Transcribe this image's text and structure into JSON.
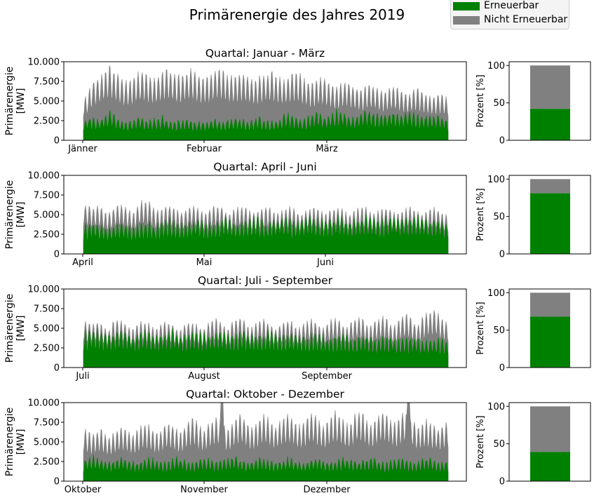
{
  "chart_data": {
    "type": "area",
    "title": "Primärenergie des Jahres 2019",
    "legend": {
      "placement": "top-right",
      "entries": [
        {
          "label": "Erneuerbar",
          "color": "#008000"
        },
        {
          "label": "Nicht Erneuerbar",
          "color": "#808080"
        }
      ]
    },
    "colors": {
      "renewable": "#008000",
      "nonrenewable": "#808080"
    },
    "ylabel": "Primärenergie\n[MW]",
    "yticks": [
      "0",
      "2.500",
      "5.000",
      "7.500",
      "10.000"
    ],
    "ylim": [
      0,
      10000
    ],
    "bar_ylabel": "Prozent [%]",
    "bar_yticks": [
      "0",
      "50",
      "100"
    ],
    "bar_ylim": [
      0,
      105
    ],
    "quarters": [
      {
        "title": "Quartal: Januar - März",
        "months": [
          "Jänner",
          "Februar",
          "März"
        ],
        "renewable_daily_peak_mw": [
          2800,
          3300,
          3100,
          2900,
          3200,
          3400,
          4100,
          3500,
          3000,
          2800,
          2600,
          2700,
          3000,
          3200,
          3100,
          2900,
          2800,
          3000,
          3100,
          3300,
          3000,
          2700,
          2600,
          2800,
          2900,
          3100,
          2800,
          2700,
          2600,
          2800,
          2700,
          2900,
          2800,
          2700,
          2600,
          2900,
          3100,
          3300,
          3000,
          2800,
          2700,
          2800,
          3000,
          3200,
          2900,
          2700,
          2600,
          2800,
          3000,
          3400,
          3700,
          3500,
          3300,
          3100,
          3000,
          3300,
          3600,
          3900,
          3700,
          3400,
          3500,
          3800,
          4100,
          4000,
          3700,
          3400,
          3300,
          3600,
          3800,
          4200,
          4100,
          3800,
          3500,
          3600,
          3800,
          4000,
          3900,
          3700,
          3600,
          3800,
          3900,
          3700,
          3500,
          3300,
          3400,
          3500,
          3600,
          3400,
          3200,
          3000
        ],
        "total_daily_peak_mw": [
          5600,
          6800,
          7900,
          8200,
          8600,
          9300,
          9900,
          9200,
          8800,
          8100,
          7800,
          8000,
          8500,
          8900,
          9100,
          8800,
          8400,
          8200,
          8600,
          9000,
          9600,
          9200,
          8700,
          8500,
          8800,
          9100,
          9500,
          9100,
          8600,
          8300,
          8500,
          8800,
          9300,
          9600,
          9100,
          8600,
          8400,
          8500,
          8700,
          8900,
          8500,
          8200,
          8000,
          8400,
          8600,
          8900,
          9100,
          8700,
          8300,
          8000,
          8400,
          8800,
          9000,
          8600,
          8100,
          7700,
          7500,
          7900,
          8300,
          8100,
          7600,
          7200,
          7000,
          7400,
          7700,
          7600,
          7200,
          6800,
          6700,
          7100,
          7400,
          7300,
          7000,
          6600,
          6500,
          6900,
          7100,
          7000,
          6600,
          6300,
          6200,
          6600,
          6800,
          6500,
          6100,
          5800,
          5900,
          6200,
          6000,
          5700
        ],
        "renewable_percent": 42
      },
      {
        "title": "Quartal: April - Juni",
        "months": [
          "April",
          "Mai",
          "Juni"
        ],
        "renewable_daily_peak_mw": [
          4000,
          4200,
          4500,
          4300,
          3900,
          3700,
          3800,
          4100,
          4400,
          4600,
          4300,
          3900,
          3800,
          4000,
          4300,
          4500,
          4400,
          4200,
          4100,
          4300,
          4600,
          4800,
          4600,
          4300,
          4100,
          4200,
          4500,
          4700,
          4900,
          4700,
          4400,
          4200,
          4300,
          4500,
          4800,
          5000,
          4800,
          4500,
          4300,
          4400,
          4600,
          4900,
          5100,
          4900,
          4600,
          4400,
          4500,
          4700,
          5000,
          5200,
          5000,
          4700,
          4500,
          4600,
          4800,
          5000,
          5300,
          5100,
          4800,
          4600,
          4700,
          4900,
          5100,
          5300,
          5100,
          4800,
          4600,
          4700,
          4900,
          5200,
          5400,
          5200,
          4900,
          4700,
          4800,
          5000,
          5200,
          5400,
          5200,
          5000,
          4800,
          4900,
          5100,
          5300,
          5100,
          4900,
          4700,
          4800,
          4900,
          4700,
          4500
        ],
        "total_daily_peak_mw": [
          6600,
          6400,
          6200,
          6300,
          6100,
          5600,
          5400,
          6100,
          6500,
          6400,
          6300,
          5700,
          5500,
          6300,
          6900,
          7000,
          6800,
          6100,
          5700,
          5900,
          6300,
          6400,
          6200,
          5700,
          5500,
          5900,
          6200,
          6300,
          6100,
          5600,
          5400,
          5900,
          6300,
          6400,
          6200,
          5600,
          5400,
          5800,
          6200,
          6300,
          6100,
          5600,
          5400,
          5700,
          6000,
          6200,
          6000,
          5500,
          5300,
          5700,
          6100,
          6200,
          6000,
          5500,
          5300,
          5700,
          6000,
          6200,
          6000,
          5500,
          5300,
          5700,
          6000,
          6200,
          6000,
          5500,
          5300,
          5700,
          6100,
          6300,
          6100,
          5600,
          5400,
          5700,
          6000,
          6200,
          6000,
          5500,
          5300,
          5700,
          6000,
          6200,
          6000,
          5500,
          5300,
          5600,
          5900,
          6100,
          5900,
          5400,
          5200
        ],
        "renewable_percent": 81
      },
      {
        "title": "Quartal: Juli - September",
        "months": [
          "Juli",
          "August",
          "September"
        ],
        "renewable_daily_peak_mw": [
          4800,
          5000,
          5200,
          5100,
          4900,
          4600,
          4500,
          4800,
          5000,
          5100,
          4900,
          4700,
          4500,
          4600,
          4800,
          5000,
          4900,
          4700,
          4500,
          4600,
          4800,
          5000,
          5100,
          4900,
          4700,
          4500,
          4600,
          4800,
          5000,
          4900,
          4700,
          4600,
          4700,
          4900,
          5000,
          4800,
          4600,
          4500,
          4600,
          4800,
          5000,
          4900,
          4700,
          4500,
          4600,
          4800,
          5000,
          4900,
          4700,
          4500,
          4400,
          4600,
          4800,
          4700,
          4500,
          4300,
          4300,
          4500,
          4700,
          4600,
          4400,
          4200,
          4200,
          4400,
          4600,
          4500,
          4300,
          4100,
          4100,
          4300,
          4500,
          4400,
          4200,
          4000,
          4000,
          4200,
          4400,
          4300,
          4100,
          3900,
          3900,
          4100,
          4300,
          4200,
          4000,
          3800,
          3800,
          4000,
          4200,
          4100,
          3900,
          3800
        ],
        "total_daily_peak_mw": [
          6100,
          6000,
          5900,
          6100,
          5800,
          5300,
          5100,
          6000,
          6200,
          6100,
          5900,
          5300,
          5100,
          5800,
          6100,
          6000,
          5800,
          5300,
          5100,
          5700,
          6000,
          5900,
          5700,
          5200,
          5000,
          5700,
          6000,
          5900,
          5700,
          5200,
          5000,
          5800,
          6300,
          6400,
          6100,
          5400,
          5200,
          5900,
          6400,
          6600,
          6200,
          5500,
          5300,
          5800,
          6200,
          6300,
          6000,
          5400,
          5200,
          5700,
          6100,
          6200,
          6000,
          5400,
          5200,
          5700,
          6100,
          6300,
          6100,
          5500,
          5300,
          5900,
          6300,
          6500,
          6300,
          5600,
          5400,
          6000,
          6400,
          6600,
          6400,
          5700,
          5500,
          6100,
          6500,
          6700,
          6500,
          5800,
          5600,
          6300,
          6800,
          7000,
          6700,
          5900,
          5700,
          6600,
          7100,
          7500,
          7700,
          7200,
          6400,
          6000
        ],
        "renewable_percent": 68
      },
      {
        "title": "Quartal: Oktober - Dezember",
        "months": [
          "Oktober",
          "November",
          "Dezember"
        ],
        "renewable_daily_peak_mw": [
          3000,
          3200,
          3400,
          3300,
          3000,
          2800,
          2700,
          2900,
          3100,
          3300,
          3200,
          2900,
          2700,
          2600,
          2800,
          3000,
          3200,
          3100,
          2900,
          2700,
          2600,
          2800,
          3000,
          3300,
          3200,
          2900,
          2700,
          2600,
          2800,
          3000,
          3200,
          3100,
          2900,
          2700,
          2800,
          3000,
          3200,
          3400,
          3300,
          3000,
          2800,
          2700,
          2900,
          3100,
          3300,
          3200,
          2900,
          2700,
          2600,
          2800,
          3000,
          3200,
          3100,
          2900,
          2700,
          2600,
          2800,
          3000,
          3200,
          3100,
          2900,
          2700,
          2700,
          2900,
          3100,
          3300,
          3200,
          2900,
          2700,
          2700,
          2900,
          3100,
          3300,
          3200,
          2900,
          2700,
          2600,
          2800,
          3000,
          3200,
          3100,
          2900,
          2700,
          2600,
          2800,
          3000,
          3200,
          3100,
          2900,
          2800,
          2700,
          2800
        ],
        "total_daily_peak_mw": [
          6700,
          6500,
          6300,
          6600,
          6900,
          6200,
          5800,
          6300,
          6800,
          7200,
          7000,
          6400,
          6000,
          6600,
          7300,
          7600,
          7400,
          6800,
          6300,
          6700,
          7400,
          7700,
          7500,
          6900,
          6500,
          7200,
          7900,
          8300,
          7900,
          7100,
          6700,
          7400,
          8100,
          8500,
          8200,
          7400,
          6900,
          7600,
          8300,
          8700,
          8400,
          7600,
          7100,
          7700,
          8400,
          8800,
          8500,
          7700,
          7200,
          7800,
          8500,
          8900,
          8600,
          7800,
          7300,
          7800,
          8600,
          9000,
          8700,
          7900,
          7400,
          7800,
          8600,
          9100,
          8800,
          8000,
          7500,
          7900,
          8700,
          9200,
          8900,
          8100,
          7600,
          8000,
          8800,
          9300,
          9000,
          8200,
          7700,
          8100,
          8900,
          9100,
          8400,
          7800,
          7300,
          7600,
          8000,
          7700,
          7300,
          7000,
          7400,
          7800
        ],
        "spikes": [
          {
            "day": 35,
            "total_mw": 10000
          },
          {
            "day": 82,
            "total_mw": 10000
          }
        ],
        "renewable_percent": 39
      }
    ]
  }
}
